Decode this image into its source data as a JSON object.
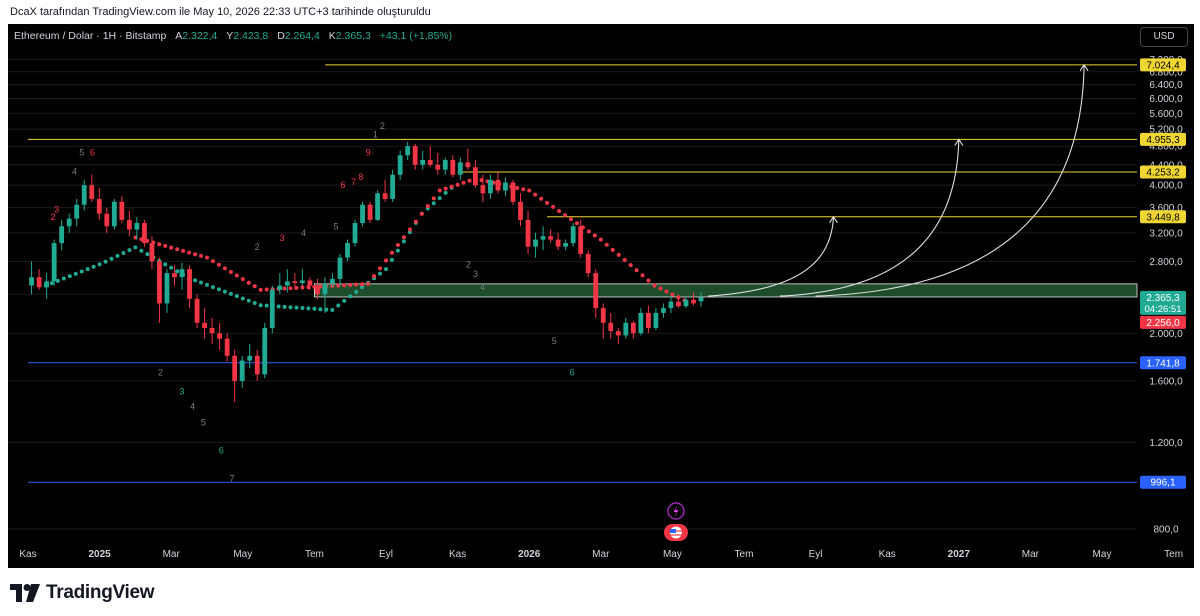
{
  "header": {
    "credit": "DcaX tarafından TradingView.com ile May 10, 2026 22:33 UTC+3 tarihinde oluşturuldu"
  },
  "legend": {
    "symbol": "Ethereum / Dolar · 1H · Bitstamp",
    "o_label": "A",
    "o_value": "2.322,4",
    "h_label": "Y",
    "h_value": "2.423,8",
    "l_label": "D",
    "l_value": "2.264,4",
    "c_label": "K",
    "c_value": "2.365,3",
    "change": "+43,1 (+1,85%)"
  },
  "currency_button": "USD",
  "footer": {
    "brand": "TradingView"
  },
  "colors": {
    "up": "#22ab94",
    "down": "#f23645",
    "level_yellow": "#f0d633",
    "level_blue": "#2962ff",
    "zone": "#1e4d2b",
    "background": "#000000"
  },
  "chart_data": {
    "type": "candlestick",
    "symbol": "ETH/USD",
    "y_scale": "log",
    "ylim": [
      760,
      7600
    ],
    "y_ticks": [
      7200,
      6800,
      6400,
      6000,
      5600,
      5200,
      4800,
      4400,
      4000,
      3600,
      3200,
      2800,
      2400,
      2000,
      1600,
      1200,
      800
    ],
    "y_tick_labels": [
      "7.200,0",
      "6.800,0",
      "6.400,0",
      "6.000,0",
      "5.600,0",
      "5.200,0",
      "4.800,0",
      "4.400,0",
      "4.000,0",
      "3.600,0",
      "3.200,0",
      "2.800,0",
      "2.400,0",
      "2.000,0",
      "1.600,0",
      "1.200,0",
      "800,0"
    ],
    "x_labels": [
      {
        "label": "Kas",
        "t": 0
      },
      {
        "label": "2025",
        "t": 2
      },
      {
        "label": "Mar",
        "t": 4
      },
      {
        "label": "May",
        "t": 6
      },
      {
        "label": "Tem",
        "t": 8
      },
      {
        "label": "Eyl",
        "t": 10
      },
      {
        "label": "Kas",
        "t": 12
      },
      {
        "label": "2026",
        "t": 14
      },
      {
        "label": "Mar",
        "t": 16
      },
      {
        "label": "May",
        "t": 18
      },
      {
        "label": "Tem",
        "t": 20
      },
      {
        "label": "Eyl",
        "t": 22
      },
      {
        "label": "Kas",
        "t": 24
      },
      {
        "label": "2027",
        "t": 26
      },
      {
        "label": "Mar",
        "t": 28
      },
      {
        "label": "May",
        "t": 30
      },
      {
        "label": "Tem",
        "t": 32
      }
    ],
    "candles": [
      [
        2500,
        2800,
        2400,
        2600
      ],
      [
        2600,
        2700,
        2450,
        2480
      ],
      [
        2480,
        2650,
        2350,
        2550
      ],
      [
        2550,
        3100,
        2500,
        3050
      ],
      [
        3050,
        3400,
        2950,
        3300
      ],
      [
        3300,
        3500,
        3200,
        3420
      ],
      [
        3420,
        3750,
        3300,
        3650
      ],
      [
        3650,
        4100,
        3550,
        4000
      ],
      [
        4000,
        4200,
        3700,
        3750
      ],
      [
        3750,
        3950,
        3400,
        3500
      ],
      [
        3500,
        3600,
        3200,
        3300
      ],
      [
        3300,
        3750,
        3250,
        3700
      ],
      [
        3700,
        3800,
        3350,
        3400
      ],
      [
        3400,
        3550,
        3150,
        3250
      ],
      [
        3250,
        3450,
        3100,
        3350
      ],
      [
        3350,
        3400,
        3000,
        3050
      ],
      [
        3050,
        3150,
        2700,
        2800
      ],
      [
        2800,
        2850,
        2100,
        2300
      ],
      [
        2300,
        2700,
        2200,
        2650
      ],
      [
        2650,
        2750,
        2500,
        2600
      ],
      [
        2600,
        2780,
        2450,
        2700
      ],
      [
        2700,
        2750,
        2250,
        2350
      ],
      [
        2350,
        2400,
        2050,
        2100
      ],
      [
        2100,
        2250,
        1950,
        2050
      ],
      [
        2050,
        2150,
        1900,
        2000
      ],
      [
        2000,
        2100,
        1850,
        1950
      ],
      [
        1950,
        2000,
        1750,
        1800
      ],
      [
        1800,
        1850,
        1450,
        1600
      ],
      [
        1600,
        1800,
        1550,
        1760
      ],
      [
        1760,
        1900,
        1700,
        1800
      ],
      [
        1800,
        1850,
        1600,
        1650
      ],
      [
        1650,
        2100,
        1620,
        2050
      ],
      [
        2050,
        2500,
        2000,
        2450
      ],
      [
        2450,
        2650,
        2400,
        2500
      ],
      [
        2500,
        2700,
        2420,
        2550
      ],
      [
        2550,
        2650,
        2450,
        2530
      ],
      [
        2530,
        2700,
        2500,
        2560
      ],
      [
        2560,
        2600,
        2450,
        2500
      ],
      [
        2500,
        2580,
        2350,
        2400
      ],
      [
        2400,
        2600,
        2200,
        2520
      ],
      [
        2520,
        2650,
        2480,
        2580
      ],
      [
        2580,
        2900,
        2500,
        2850
      ],
      [
        2850,
        3100,
        2800,
        3050
      ],
      [
        3050,
        3400,
        3000,
        3350
      ],
      [
        3350,
        3700,
        3300,
        3650
      ],
      [
        3650,
        3700,
        3350,
        3400
      ],
      [
        3400,
        3900,
        3380,
        3850
      ],
      [
        3850,
        4100,
        3700,
        3750
      ],
      [
        3750,
        4300,
        3700,
        4200
      ],
      [
        4200,
        4700,
        4100,
        4600
      ],
      [
        4600,
        4900,
        4500,
        4800
      ],
      [
        4800,
        4850,
        4300,
        4400
      ],
      [
        4400,
        4700,
        4300,
        4500
      ],
      [
        4500,
        4800,
        4350,
        4400
      ],
      [
        4400,
        4650,
        4200,
        4300
      ],
      [
        4300,
        4550,
        4200,
        4500
      ],
      [
        4500,
        4600,
        4150,
        4200
      ],
      [
        4200,
        4550,
        4100,
        4450
      ],
      [
        4450,
        4750,
        4300,
        4350
      ],
      [
        4350,
        4500,
        3950,
        4000
      ],
      [
        4000,
        4200,
        3700,
        3850
      ],
      [
        3850,
        4200,
        3750,
        4100
      ],
      [
        4100,
        4250,
        3850,
        3900
      ],
      [
        3900,
        4150,
        3800,
        4050
      ],
      [
        4050,
        4100,
        3650,
        3700
      ],
      [
        3700,
        3850,
        3300,
        3400
      ],
      [
        3400,
        3550,
        2900,
        3000
      ],
      [
        3000,
        3200,
        2850,
        3100
      ],
      [
        3100,
        3300,
        2950,
        3150
      ],
      [
        3150,
        3250,
        3050,
        3100
      ],
      [
        3100,
        3200,
        2950,
        3000
      ],
      [
        3000,
        3100,
        2950,
        3050
      ],
      [
        3050,
        3350,
        3000,
        3300
      ],
      [
        3300,
        3400,
        2850,
        2900
      ],
      [
        2900,
        2950,
        2600,
        2650
      ],
      [
        2650,
        2700,
        2150,
        2250
      ],
      [
        2250,
        2300,
        1950,
        2100
      ],
      [
        2100,
        2200,
        1950,
        2020
      ],
      [
        2020,
        2050,
        1900,
        1980
      ],
      [
        1980,
        2150,
        1950,
        2100
      ],
      [
        2100,
        2120,
        1950,
        2000
      ],
      [
        2000,
        2250,
        1980,
        2200
      ],
      [
        2200,
        2280,
        2000,
        2050
      ],
      [
        2050,
        2250,
        2030,
        2200
      ],
      [
        2200,
        2300,
        2150,
        2250
      ],
      [
        2250,
        2380,
        2200,
        2320
      ],
      [
        2320,
        2400,
        2250,
        2270
      ],
      [
        2270,
        2380,
        2250,
        2340
      ],
      [
        2340,
        2420,
        2280,
        2300
      ],
      [
        2322.4,
        2423.8,
        2264.4,
        2365.3
      ]
    ],
    "sar_series": {
      "below": [
        [
          0.5,
          2500
        ],
        [
          2,
          2760
        ],
        [
          3,
          2990
        ],
        [
          4.5,
          2590
        ],
        [
          6.5,
          2280
        ],
        [
          8.5,
          2230
        ],
        [
          10,
          2700
        ],
        [
          11,
          3500
        ],
        [
          12,
          4050
        ]
      ],
      "above": [
        [
          3,
          3130
        ],
        [
          5,
          2850
        ],
        [
          6.5,
          2450
        ],
        [
          9.5,
          2520
        ],
        [
          11.5,
          3900
        ],
        [
          12.5,
          4120
        ],
        [
          14,
          3900
        ],
        [
          16,
          3100
        ],
        [
          17.5,
          2500
        ],
        [
          18.5,
          2300
        ]
      ]
    },
    "levels": [
      {
        "price": 7024.4,
        "label": "7.024,4",
        "color": "#f0d633",
        "t_start": 8.3
      },
      {
        "price": 4955.3,
        "label": "4.955,3",
        "color": "#f0d633",
        "t_start": 0
      },
      {
        "price": 4253.2,
        "label": "4.253,2",
        "color": "#f0d633",
        "t_start": 12
      },
      {
        "price": 3449.8,
        "label": "3.449,8",
        "color": "#f0d633",
        "t_start": 14.5
      },
      {
        "price": 1741.8,
        "label": "1.741,8",
        "color": "#2962ff",
        "t_start": 0
      },
      {
        "price": 996.1,
        "label": "996,1",
        "color": "#2962ff",
        "t_start": 0
      }
    ],
    "zone": {
      "low": 2370,
      "high": 2520,
      "t_start": 8,
      "t_end": 34
    },
    "last_price": {
      "label": "2.365,3",
      "countdown": "04:26:51"
    },
    "low_marker": {
      "label": "2.256,0"
    },
    "projection_arrows": [
      {
        "from": [
          19.0,
          2380
        ],
        "to": [
          22.5,
          3449.8
        ]
      },
      {
        "from": [
          21.0,
          2380
        ],
        "to": [
          26.0,
          4955.3
        ]
      },
      {
        "from": [
          22.0,
          2380
        ],
        "to": [
          29.5,
          7024.4
        ]
      }
    ],
    "td_labels": [
      {
        "t": 0.7,
        "price": 3400,
        "text": "2",
        "color": "#f23645"
      },
      {
        "t": 0.8,
        "price": 3520,
        "text": "3",
        "color": "#f23645"
      },
      {
        "t": 1.3,
        "price": 4200,
        "text": "4",
        "color": "#787b86"
      },
      {
        "t": 1.5,
        "price": 4600,
        "text": "5",
        "color": "#787b86"
      },
      {
        "t": 1.8,
        "price": 4600,
        "text": "6",
        "color": "#f23645"
      },
      {
        "t": 3.7,
        "price": 1640,
        "text": "2",
        "color": "#787b86"
      },
      {
        "t": 4.3,
        "price": 1500,
        "text": "3",
        "color": "#22ab94"
      },
      {
        "t": 4.6,
        "price": 1400,
        "text": "4",
        "color": "#787b86"
      },
      {
        "t": 4.9,
        "price": 1300,
        "text": "5",
        "color": "#787b86"
      },
      {
        "t": 5.4,
        "price": 1140,
        "text": "6",
        "color": "#22ab94"
      },
      {
        "t": 5.7,
        "price": 1000,
        "text": "7",
        "color": "#787b86"
      },
      {
        "t": 6.4,
        "price": 2950,
        "text": "2",
        "color": "#787b86"
      },
      {
        "t": 7.1,
        "price": 3080,
        "text": "3",
        "color": "#f23645"
      },
      {
        "t": 7.7,
        "price": 3150,
        "text": "4",
        "color": "#787b86"
      },
      {
        "t": 8.6,
        "price": 3250,
        "text": "5",
        "color": "#787b86"
      },
      {
        "t": 8.8,
        "price": 3950,
        "text": "6",
        "color": "#f23645"
      },
      {
        "t": 9.1,
        "price": 4000,
        "text": "7",
        "color": "#f23645"
      },
      {
        "t": 9.3,
        "price": 4100,
        "text": "8",
        "color": "#f23645"
      },
      {
        "t": 9.5,
        "price": 4600,
        "text": "9",
        "color": "#f23645"
      },
      {
        "t": 9.7,
        "price": 5000,
        "text": "1",
        "color": "#787b86"
      },
      {
        "t": 9.9,
        "price": 5200,
        "text": "2",
        "color": "#787b86"
      },
      {
        "t": 12.3,
        "price": 2720,
        "text": "2",
        "color": "#787b86"
      },
      {
        "t": 12.5,
        "price": 2600,
        "text": "3",
        "color": "#787b86"
      },
      {
        "t": 12.7,
        "price": 2450,
        "text": "4",
        "color": "#787b86"
      },
      {
        "t": 14.7,
        "price": 1900,
        "text": "5",
        "color": "#787b86"
      },
      {
        "t": 15.2,
        "price": 1640,
        "text": "6",
        "color": "#22ab94"
      }
    ]
  }
}
